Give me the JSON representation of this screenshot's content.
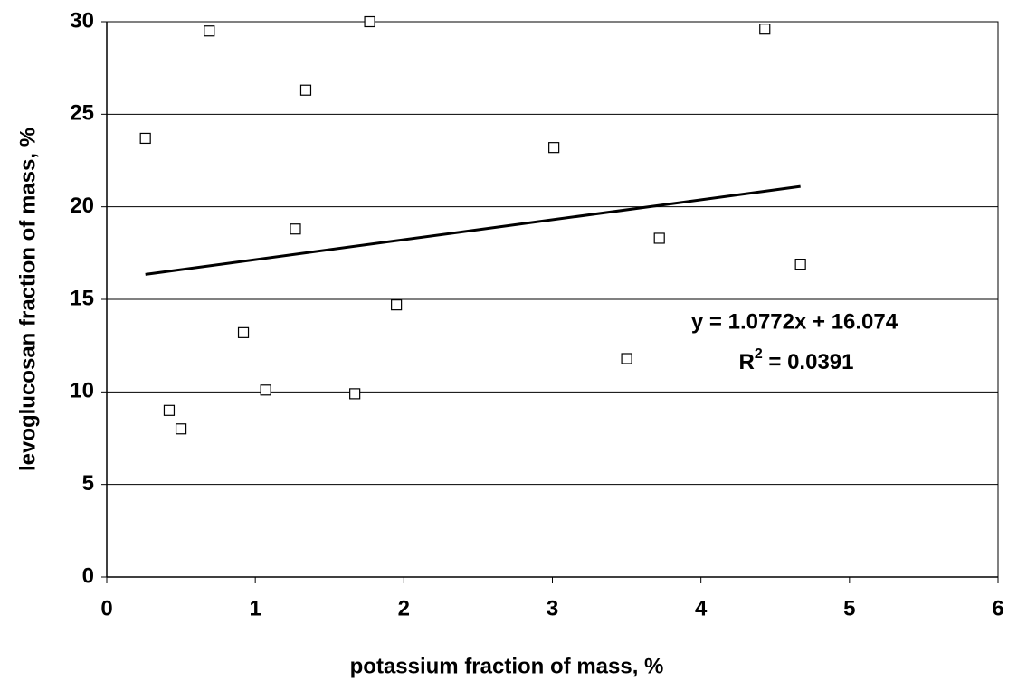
{
  "chart_data": {
    "type": "scatter",
    "x_label": "potassium fraction of mass, %",
    "y_label": "levoglucosan fraction of mass, %",
    "x": [
      0.26,
      0.42,
      0.5,
      0.69,
      0.92,
      1.07,
      1.27,
      1.34,
      1.67,
      1.77,
      1.95,
      3.01,
      3.5,
      3.72,
      4.43,
      4.67
    ],
    "values": [
      23.7,
      9.0,
      8.0,
      29.5,
      13.2,
      10.1,
      18.8,
      26.3,
      9.9,
      30.0,
      14.7,
      23.2,
      11.8,
      18.3,
      29.6,
      16.9
    ],
    "marker_color": "#000000",
    "trendline": {
      "x": [
        0.26,
        4.67
      ],
      "values": [
        16.35,
        21.1
      ],
      "color": "#000000"
    },
    "equation": "y = 1.0772x + 16.074",
    "r_squared": {
      "symbol": "R",
      "superscript": "2",
      "text": " = 0.0391"
    },
    "xlim": [
      0,
      6
    ],
    "xticks": [
      0,
      1,
      2,
      3,
      4,
      5,
      6
    ],
    "ylim": [
      0,
      30
    ],
    "yticks": [
      0,
      5,
      10,
      15,
      20,
      25,
      30
    ],
    "grid": true
  }
}
